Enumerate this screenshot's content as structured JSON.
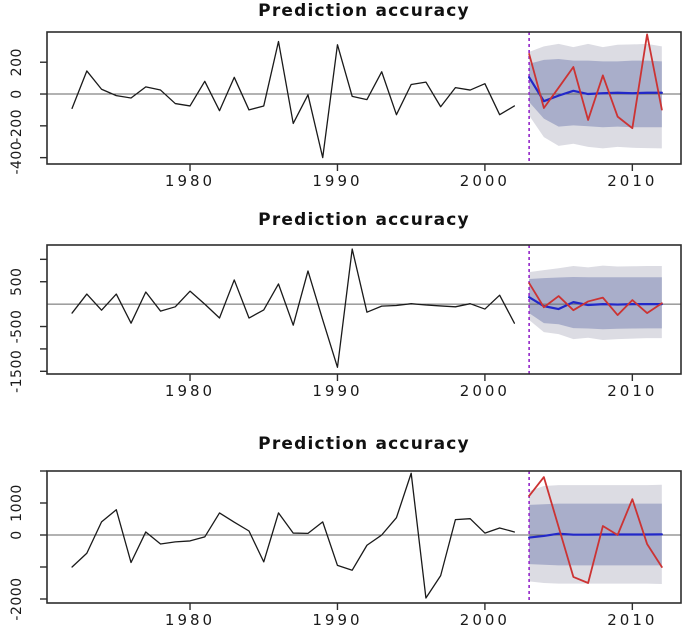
{
  "figure": {
    "background": "#ffffff",
    "accent_colors": {
      "observed_line": "#1a1a1a",
      "forecast_line": "#2228c8",
      "actual_line": "#cc3333",
      "forecast_marker": "#9933cc",
      "inner_band": "#a9aeca",
      "outer_band": "#dcdce3"
    }
  },
  "chart_data": [
    {
      "type": "line",
      "title": "Prediction accuracy",
      "xlabel": "",
      "ylabel": "",
      "grid": false,
      "legend": "none",
      "xlim": [
        1970.3,
        2013.3
      ],
      "ylim": [
        -440,
        390
      ],
      "x_ticks": [
        1980,
        1990,
        2000,
        2010
      ],
      "y_ticks": [
        {
          "value": 200,
          "label": "200"
        },
        {
          "value": 0,
          "label": "0"
        },
        {
          "value": -200,
          "label": "-200"
        },
        {
          "value": -400,
          "label": "-400"
        }
      ],
      "zero_line": 0,
      "forecast_start_x": 2003,
      "forecast_marker_color": "#9933cc",
      "bands": [
        {
          "name": "outer-interval",
          "color": "#dcdce3",
          "x_start": 2003,
          "hi": [
            265,
            300,
            315,
            295,
            315,
            295,
            310,
            312,
            315,
            300
          ],
          "lo": [
            -135,
            -271,
            -326,
            -313,
            -332,
            -342,
            -332,
            -338,
            -340,
            -342
          ]
        },
        {
          "name": "inner-interval",
          "color": "#a9aeca",
          "x_start": 2003,
          "hi": [
            190,
            215,
            220,
            210,
            210,
            205,
            205,
            210,
            210,
            205
          ],
          "lo": [
            -50,
            -155,
            -205,
            -197,
            -203,
            -209,
            -205,
            -209,
            -209,
            -209
          ]
        }
      ],
      "series": [
        {
          "name": "observed",
          "color": "#1a1a1a",
          "width": 1.3,
          "x_start": 1972,
          "values": [
            -90,
            145,
            30,
            -10,
            -25,
            45,
            25,
            -60,
            -75,
            80,
            -105,
            105,
            -100,
            -75,
            330,
            -185,
            -5,
            -400,
            310,
            -15,
            -35,
            140,
            -130,
            60,
            75,
            -80,
            40,
            25,
            65,
            -130,
            -75
          ]
        },
        {
          "name": "point-forecast",
          "color": "#2228c8",
          "width": 2.2,
          "x_start": 2003,
          "values": [
            105,
            -45,
            -10,
            20,
            0,
            5,
            8,
            5,
            8,
            8
          ]
        },
        {
          "name": "actual-future",
          "color": "#cc3333",
          "width": 1.8,
          "x_start": 2003,
          "values": [
            252,
            -88,
            40,
            170,
            -163,
            117,
            -142,
            -215,
            375,
            -98
          ]
        }
      ]
    },
    {
      "type": "line",
      "title": "Prediction accuracy",
      "xlabel": "",
      "ylabel": "",
      "grid": false,
      "legend": "none",
      "xlim": [
        1970.3,
        2013.3
      ],
      "ylim": [
        -1560,
        1320
      ],
      "x_ticks": [
        1980,
        1990,
        2000,
        2010
      ],
      "y_ticks": [
        {
          "value": 1000,
          "label": ""
        },
        {
          "value": 500,
          "label": "500"
        },
        {
          "value": -500,
          "label": "-500"
        },
        {
          "value": -1000,
          "label": ""
        },
        {
          "value": -1500,
          "label": "-1500"
        }
      ],
      "zero_line": 0,
      "forecast_start_x": 2003,
      "forecast_marker_color": "#9933cc",
      "bands": [
        {
          "name": "outer-interval",
          "color": "#dcdce3",
          "x_start": 2003,
          "hi": [
            715,
            760,
            800,
            850,
            820,
            860,
            840,
            845,
            850,
            850
          ],
          "lo": [
            -355,
            -625,
            -670,
            -780,
            -750,
            -800,
            -780,
            -770,
            -760,
            -760
          ]
        },
        {
          "name": "inner-interval",
          "color": "#a9aeca",
          "x_start": 2003,
          "hi": [
            560,
            580,
            595,
            605,
            600,
            600,
            600,
            600,
            600,
            600
          ],
          "lo": [
            -200,
            -425,
            -450,
            -535,
            -545,
            -560,
            -550,
            -545,
            -540,
            -540
          ]
        }
      ],
      "series": [
        {
          "name": "observed",
          "color": "#1a1a1a",
          "width": 1.3,
          "x_start": 1972,
          "values": [
            -200,
            225,
            -135,
            225,
            -425,
            270,
            -155,
            -60,
            290,
            0,
            -310,
            540,
            -310,
            -130,
            450,
            -470,
            740,
            -350,
            -1410,
            1230,
            -180,
            -45,
            -30,
            10,
            -20,
            -40,
            -60,
            10,
            -110,
            200,
            -425
          ]
        },
        {
          "name": "point-forecast",
          "color": "#2228c8",
          "width": 2.2,
          "x_start": 2003,
          "values": [
            155,
            -45,
            -110,
            45,
            -20,
            0,
            -10,
            0,
            0,
            0
          ]
        },
        {
          "name": "actual-future",
          "color": "#cc3333",
          "width": 1.8,
          "x_start": 2003,
          "values": [
            470,
            -70,
            180,
            -135,
            60,
            145,
            -245,
            90,
            -200,
            20
          ]
        }
      ]
    },
    {
      "type": "line",
      "title": "Prediction accuracy",
      "xlabel": "",
      "ylabel": "",
      "grid": false,
      "legend": "none",
      "xlim": [
        1970.3,
        2013.3
      ],
      "ylim": [
        -2125,
        2000
      ],
      "x_ticks": [
        1980,
        1990,
        2000,
        2010
      ],
      "y_ticks": [
        {
          "value": 2000,
          "label": ""
        },
        {
          "value": 1000,
          "label": "1000"
        },
        {
          "value": 0,
          "label": "0"
        },
        {
          "value": -1000,
          "label": ""
        },
        {
          "value": -2000,
          "label": "-2000"
        }
      ],
      "zero_line": 0,
      "forecast_start_x": 2003,
      "forecast_marker_color": "#9933cc",
      "bands": [
        {
          "name": "outer-interval",
          "color": "#dcdce3",
          "x_start": 2003,
          "hi": [
            1370,
            1530,
            1560,
            1560,
            1560,
            1560,
            1560,
            1560,
            1560,
            1570
          ],
          "lo": [
            -1450,
            -1500,
            -1520,
            -1520,
            -1520,
            -1520,
            -1520,
            -1520,
            -1520,
            -1530
          ]
        },
        {
          "name": "inner-interval",
          "color": "#a9aeca",
          "x_start": 2003,
          "hi": [
            940,
            960,
            980,
            980,
            980,
            980,
            980,
            980,
            980,
            980
          ],
          "lo": [
            -910,
            -930,
            -950,
            -950,
            -950,
            -950,
            -950,
            -950,
            -950,
            -950
          ]
        }
      ],
      "series": [
        {
          "name": "observed",
          "color": "#1a1a1a",
          "width": 1.3,
          "x_start": 1972,
          "values": [
            -1000,
            -570,
            410,
            790,
            -860,
            95,
            -280,
            -215,
            -185,
            -60,
            690,
            400,
            125,
            -840,
            690,
            60,
            50,
            410,
            -950,
            -1100,
            -320,
            0,
            540,
            1930,
            -1970,
            -1270,
            480,
            510,
            60,
            220,
            95
          ]
        },
        {
          "name": "point-forecast",
          "color": "#2228c8",
          "width": 2.2,
          "x_start": 2003,
          "values": [
            -80,
            -30,
            40,
            10,
            10,
            15,
            15,
            15,
            15,
            20
          ]
        },
        {
          "name": "actual-future",
          "color": "#cc3333",
          "width": 1.8,
          "x_start": 2003,
          "values": [
            1220,
            1810,
            250,
            -1310,
            -1500,
            280,
            0,
            1120,
            -280,
            -1000
          ]
        }
      ]
    }
  ]
}
